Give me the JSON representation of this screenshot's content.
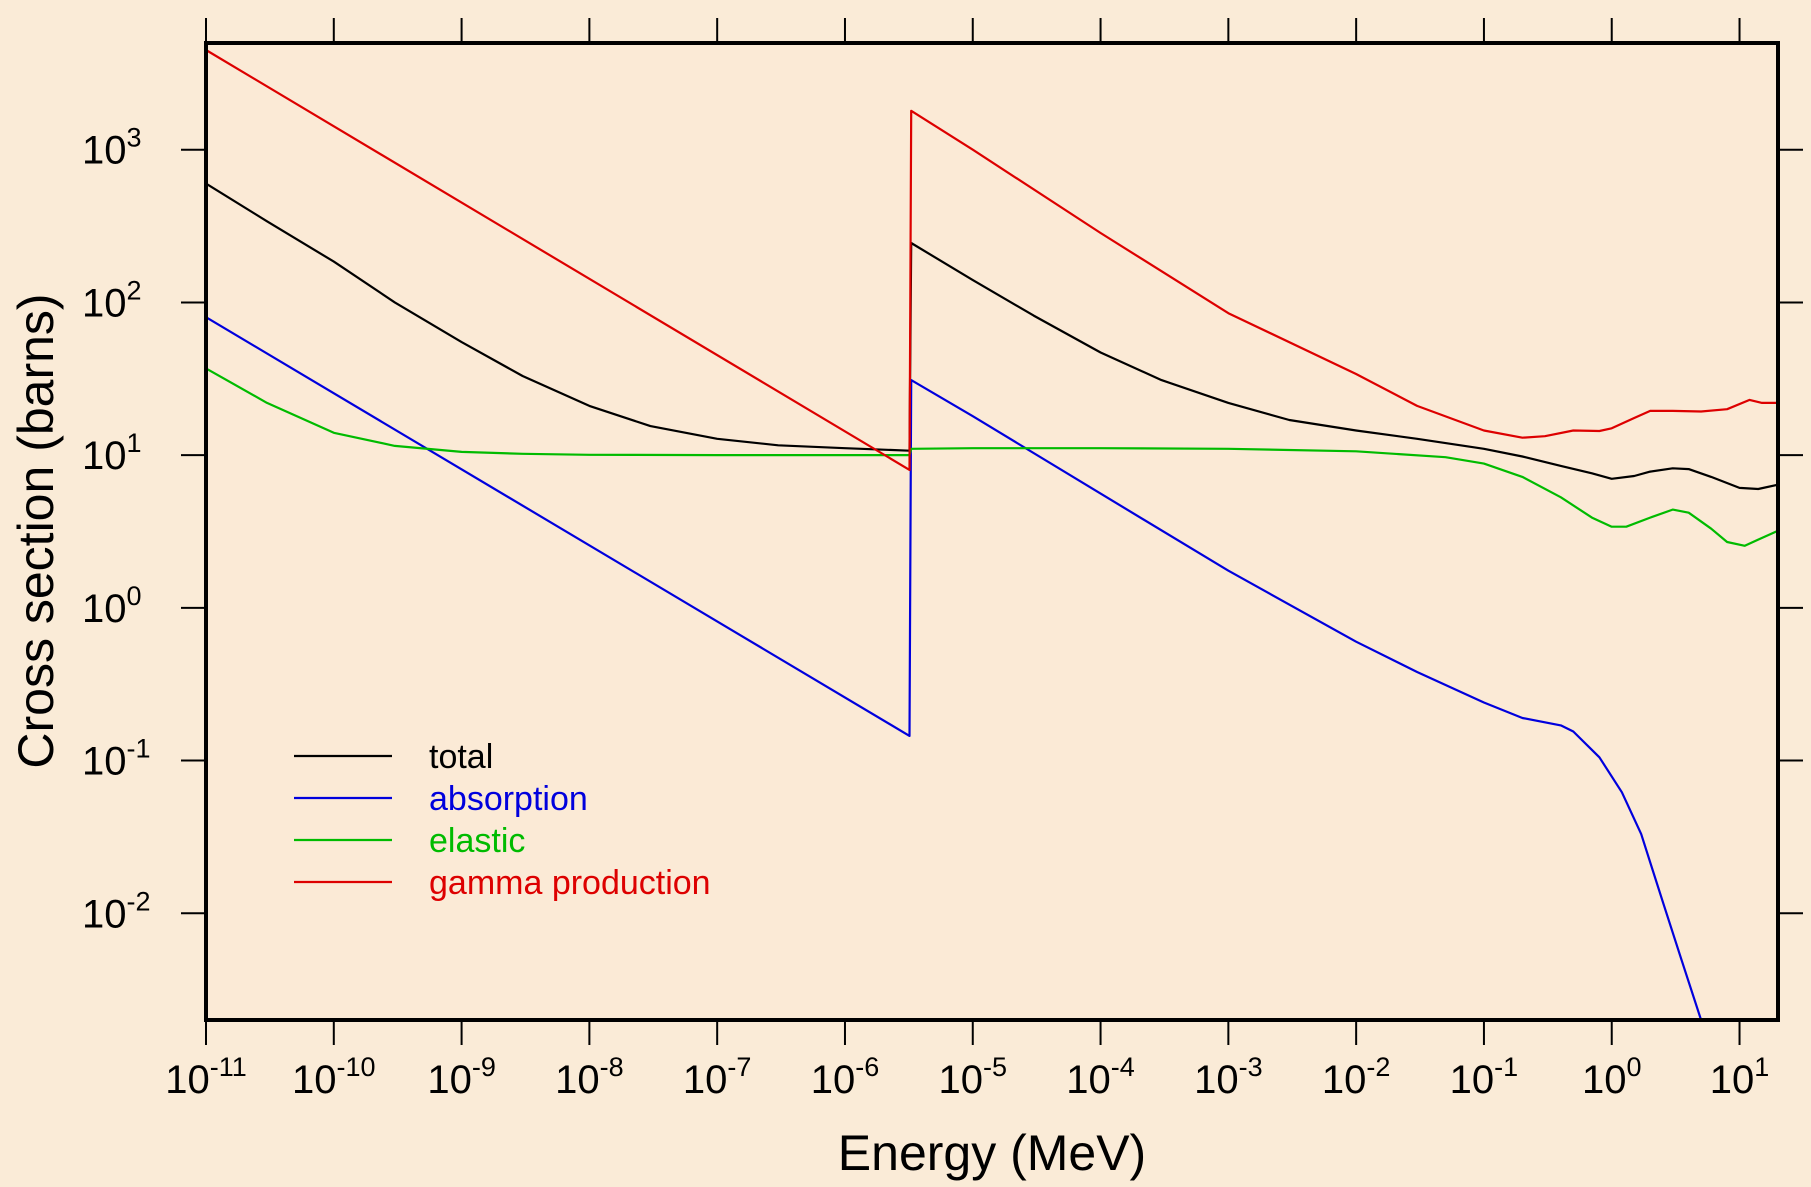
{
  "chart_data": {
    "type": "line",
    "xlabel": "Energy (MeV)",
    "ylabel": "Cross section (barns)",
    "xscale": "log",
    "yscale": "log",
    "xlim": [
      1e-11,
      20
    ],
    "ylim": [
      0.002,
      5000
    ],
    "grid": false,
    "legend_position": "lower-left",
    "colors": {
      "background": "#faebd7",
      "plot_background": "#fbead6",
      "axes": "#000000"
    },
    "x_ticks": [
      {
        "base": "10",
        "exp": "-11",
        "value": 1e-11
      },
      {
        "base": "10",
        "exp": "-10",
        "value": 1e-10
      },
      {
        "base": "10",
        "exp": "-9",
        "value": 1e-09
      },
      {
        "base": "10",
        "exp": "-8",
        "value": 1e-08
      },
      {
        "base": "10",
        "exp": "-7",
        "value": 1e-07
      },
      {
        "base": "10",
        "exp": "-6",
        "value": 1e-06
      },
      {
        "base": "10",
        "exp": "-5",
        "value": 1e-05
      },
      {
        "base": "10",
        "exp": "-4",
        "value": 0.0001
      },
      {
        "base": "10",
        "exp": "-3",
        "value": 0.001
      },
      {
        "base": "10",
        "exp": "-2",
        "value": 0.01
      },
      {
        "base": "10",
        "exp": "-1",
        "value": 0.1
      },
      {
        "base": "10",
        "exp": "0",
        "value": 1
      },
      {
        "base": "10",
        "exp": "1",
        "value": 10
      }
    ],
    "y_ticks": [
      {
        "base": "10",
        "exp": "3",
        "value": 1000
      },
      {
        "base": "10",
        "exp": "2",
        "value": 100
      },
      {
        "base": "10",
        "exp": "1",
        "value": 10
      },
      {
        "base": "10",
        "exp": "0",
        "value": 1
      },
      {
        "base": "10",
        "exp": "-1",
        "value": 0.1
      },
      {
        "base": "10",
        "exp": "-2",
        "value": 0.01
      }
    ],
    "series": [
      {
        "name": "total",
        "color": "#000000",
        "points": [
          [
            1e-11,
            600
          ],
          [
            3e-11,
            340
          ],
          [
            1e-10,
            185
          ],
          [
            3e-10,
            100
          ],
          [
            1e-09,
            55
          ],
          [
            3e-09,
            33
          ],
          [
            1e-08,
            21
          ],
          [
            3e-08,
            15.5
          ],
          [
            1e-07,
            12.8
          ],
          [
            3e-07,
            11.6
          ],
          [
            1e-06,
            11.1
          ],
          [
            3.2e-06,
            10.7
          ],
          [
            3.3e-06,
            245
          ],
          [
            1e-05,
            140
          ],
          [
            3e-05,
            82
          ],
          [
            0.0001,
            47
          ],
          [
            0.0003,
            31
          ],
          [
            0.001,
            22
          ],
          [
            0.003,
            17
          ],
          [
            0.01,
            14.5
          ],
          [
            0.03,
            12.8
          ],
          [
            0.1,
            11
          ],
          [
            0.2,
            9.8
          ],
          [
            0.4,
            8.5
          ],
          [
            0.7,
            7.6
          ],
          [
            1.0,
            7.0
          ],
          [
            1.5,
            7.3
          ],
          [
            2.0,
            7.8
          ],
          [
            3.0,
            8.2
          ],
          [
            4.0,
            8.1
          ],
          [
            6.0,
            7.2
          ],
          [
            10,
            6.1
          ],
          [
            14,
            6.0
          ],
          [
            20,
            6.4
          ]
        ]
      },
      {
        "name": "absorption",
        "color": "#0000dd",
        "points": [
          [
            1e-11,
            80
          ],
          [
            3.2e-06,
            0.145
          ],
          [
            3.3e-06,
            31
          ],
          [
            1e-05,
            18
          ],
          [
            0.0001,
            5.6
          ],
          [
            0.001,
            1.75
          ],
          [
            0.01,
            0.6
          ],
          [
            0.03,
            0.38
          ],
          [
            0.1,
            0.24
          ],
          [
            0.2,
            0.19
          ],
          [
            0.4,
            0.17
          ],
          [
            0.5,
            0.155
          ],
          [
            0.8,
            0.105
          ],
          [
            1.2,
            0.062
          ],
          [
            1.7,
            0.033
          ],
          [
            2.5,
            0.012
          ],
          [
            3.5,
            0.005
          ],
          [
            5.0,
            0.002
          ],
          [
            20,
            0.002
          ]
        ]
      },
      {
        "name": "elastic",
        "color": "#00bb00",
        "points": [
          [
            1e-11,
            37
          ],
          [
            3e-11,
            22
          ],
          [
            1e-10,
            14
          ],
          [
            3e-10,
            11.5
          ],
          [
            1e-09,
            10.5
          ],
          [
            3e-09,
            10.2
          ],
          [
            1e-08,
            10.05
          ],
          [
            1e-07,
            10
          ],
          [
            1e-06,
            10
          ],
          [
            3.2e-06,
            10
          ],
          [
            3.3e-06,
            11
          ],
          [
            1e-05,
            11.1
          ],
          [
            0.0001,
            11.1
          ],
          [
            0.001,
            11
          ],
          [
            0.01,
            10.6
          ],
          [
            0.05,
            9.7
          ],
          [
            0.1,
            8.8
          ],
          [
            0.2,
            7.2
          ],
          [
            0.4,
            5.3
          ],
          [
            0.7,
            3.9
          ],
          [
            1.0,
            3.4
          ],
          [
            1.3,
            3.4
          ],
          [
            2.0,
            3.9
          ],
          [
            3.0,
            4.4
          ],
          [
            4.0,
            4.2
          ],
          [
            6.0,
            3.3
          ],
          [
            8.0,
            2.7
          ],
          [
            11,
            2.55
          ],
          [
            14,
            2.8
          ],
          [
            20,
            3.2
          ]
        ]
      },
      {
        "name": "gamma production",
        "color": "#dd0000",
        "points": [
          [
            1e-11,
            4500
          ],
          [
            3.2e-06,
            8
          ],
          [
            3.3e-06,
            1800
          ],
          [
            1e-05,
            1000
          ],
          [
            0.0001,
            285
          ],
          [
            0.001,
            85
          ],
          [
            0.01,
            34
          ],
          [
            0.03,
            21
          ],
          [
            0.1,
            14.5
          ],
          [
            0.2,
            13
          ],
          [
            0.3,
            13.3
          ],
          [
            0.5,
            14.5
          ],
          [
            0.8,
            14.4
          ],
          [
            1.0,
            15
          ],
          [
            1.5,
            17.5
          ],
          [
            2.0,
            19.5
          ],
          [
            3.0,
            19.5
          ],
          [
            5.0,
            19.3
          ],
          [
            8.0,
            20
          ],
          [
            12,
            23
          ],
          [
            15,
            22
          ],
          [
            20,
            22
          ]
        ]
      }
    ]
  }
}
